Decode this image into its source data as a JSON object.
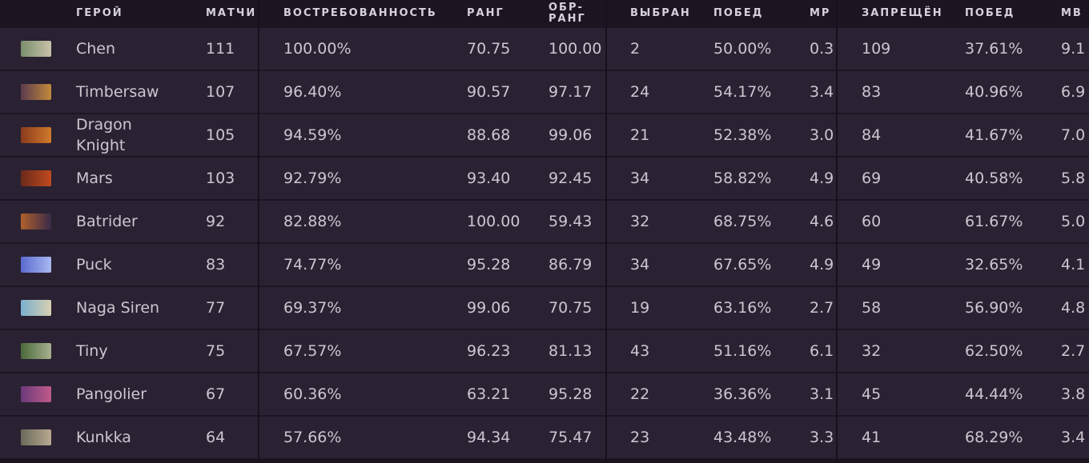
{
  "table": {
    "header": [
      "ГЕРОЙ",
      "МАТЧИ",
      "ВОСТРЕБОВАННОСТЬ",
      "РАНГ",
      "ОБР-\nРАНГ",
      "ВЫБРАН",
      "ПОБЕД",
      "МР",
      "ЗАПРЕЩЁН",
      "ПОБЕД",
      "МВ"
    ],
    "rows": [
      [
        "Chen",
        "111",
        "100.00%",
        "70.75",
        "100.00",
        "2",
        "50.00%",
        "0.3",
        "109",
        "37.61%",
        "9.1"
      ],
      [
        "Timbersaw",
        "107",
        "96.40%",
        "90.57",
        "97.17",
        "24",
        "54.17%",
        "3.4",
        "83",
        "40.96%",
        "6.9"
      ],
      [
        "Dragon Knight",
        "105",
        "94.59%",
        "88.68",
        "99.06",
        "21",
        "52.38%",
        "3.0",
        "84",
        "41.67%",
        "7.0"
      ],
      [
        "Mars",
        "103",
        "92.79%",
        "93.40",
        "92.45",
        "34",
        "58.82%",
        "4.9",
        "69",
        "40.58%",
        "5.8"
      ],
      [
        "Batrider",
        "92",
        "82.88%",
        "100.00",
        "59.43",
        "32",
        "68.75%",
        "4.6",
        "60",
        "61.67%",
        "5.0"
      ],
      [
        "Puck",
        "83",
        "74.77%",
        "95.28",
        "86.79",
        "34",
        "67.65%",
        "4.9",
        "49",
        "32.65%",
        "4.1"
      ],
      [
        "Naga Siren",
        "77",
        "69.37%",
        "99.06",
        "70.75",
        "19",
        "63.16%",
        "2.7",
        "58",
        "56.90%",
        "4.8"
      ],
      [
        "Tiny",
        "75",
        "67.57%",
        "96.23",
        "81.13",
        "43",
        "51.16%",
        "6.1",
        "32",
        "62.50%",
        "2.7"
      ],
      [
        "Pangolier",
        "67",
        "60.36%",
        "63.21",
        "95.28",
        "22",
        "36.36%",
        "3.1",
        "45",
        "44.44%",
        "3.8"
      ],
      [
        "Kunkka",
        "64",
        "57.66%",
        "94.34",
        "75.47",
        "23",
        "43.48%",
        "3.3",
        "41",
        "68.29%",
        "3.4"
      ]
    ]
  }
}
